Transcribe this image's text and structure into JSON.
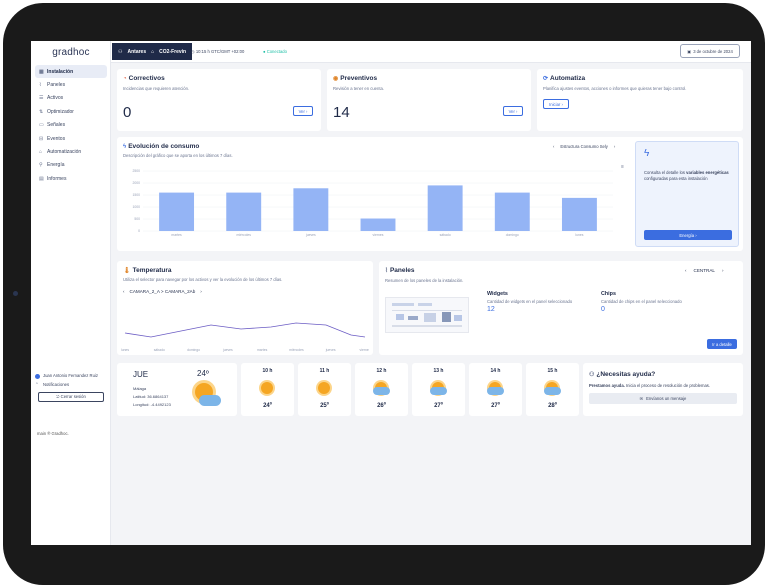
{
  "app": {
    "logo": "gradhoc"
  },
  "sidebar": {
    "items": [
      {
        "label": "Instalación",
        "icon": "grid-icon"
      },
      {
        "label": "Paneles",
        "icon": "pulse-icon"
      },
      {
        "label": "Activos",
        "icon": "list-icon"
      },
      {
        "label": "Optimizador",
        "icon": "sliders-icon"
      },
      {
        "label": "Señales",
        "icon": "folder-icon"
      },
      {
        "label": "Eventos",
        "icon": "event-icon"
      },
      {
        "label": "Automatización",
        "icon": "robot-icon"
      },
      {
        "label": "Energía",
        "icon": "pin-icon"
      },
      {
        "label": "Informes",
        "icon": "document-icon"
      }
    ],
    "user_name": "Juan Antonio Fernandez Ruiz",
    "notifications_label": "Notificaciones",
    "logout_label": "Cerrar sesión",
    "footer": "main ® Gradhoc."
  },
  "topbar": {
    "site": "Antares",
    "installation": "CO2-Frevin",
    "timezone": "10:15 h GTC/GMT +02:00",
    "status": "Conectado",
    "date": "3 de octubre de 2024"
  },
  "cards": {
    "correctivos": {
      "title": "Correctivos",
      "subtitle": "Incidencias que requieren atención.",
      "value": "0",
      "button": "Ver"
    },
    "preventivos": {
      "title": "Preventivos",
      "subtitle": "Revisión a tener en cuenta.",
      "value": "14",
      "button": "Ver"
    },
    "automatiza": {
      "title": "Automatiza",
      "subtitle": "Planifica ajustes eventos, acciones o informes que quieras tener bajo control.",
      "button": "Iniciar"
    }
  },
  "consumo": {
    "title": "Evolución de consumo",
    "subtitle": "Descripción del gráfico que se aporta en los últimos 7 días.",
    "structure": "Estructura Consumo Sely",
    "side_text_pre": "Consulta el detalle los",
    "side_text_bold": "variables energéticas",
    "side_text_post": "configuradas para esta instalación",
    "side_button": "Energía"
  },
  "chart_data": {
    "type": "bar",
    "categories": [
      "martes",
      "miércoles",
      "jueves",
      "viernes",
      "sábado",
      "domingo",
      "lunes"
    ],
    "values": [
      1600,
      1600,
      1780,
      520,
      1900,
      1600,
      1380
    ],
    "ylim": [
      0,
      2500
    ],
    "yticks": [
      "0",
      "500",
      "1000",
      "1500",
      "2000",
      "2500"
    ],
    "grid": true,
    "color": "#94b4f5"
  },
  "temperatura": {
    "title": "Temperatura",
    "subtitle": "Utiliza el selector para navegar por los activos y ver la evolución de los últimos 7 días.",
    "selector": "CAMARA_2_A > CAMARA_2Ab",
    "x_labels": [
      "lunes",
      "sábado",
      "domingo",
      "jueves",
      "martes",
      "miércoles",
      "jueves",
      "viernes"
    ]
  },
  "paneles": {
    "title": "Paneles",
    "subtitle": "Resumen de los paneles de la instalación.",
    "selector": "CENTRAL",
    "widgets_label": "Widgets",
    "widgets_sub": "Cantidad de widgets en el panel seleccionado",
    "widgets_value": "12",
    "chips_label": "Chips",
    "chips_sub": "Cantidad de chips en el panel seleccionado",
    "chips_value": "0",
    "button": "Ir a detalle"
  },
  "weather": {
    "day": "JUE",
    "temp": "24º",
    "city": "Málaga",
    "lat": "Latitud: 36.6864137",
    "lon": "Longitud: -4.4492123",
    "hours": [
      {
        "h": "10 h",
        "t": "24º",
        "icon": "sun-icon"
      },
      {
        "h": "11 h",
        "t": "25º",
        "icon": "sun-icon"
      },
      {
        "h": "12 h",
        "t": "26º",
        "icon": "partly-cloudy-icon"
      },
      {
        "h": "13 h",
        "t": "27º",
        "icon": "partly-cloudy-icon"
      },
      {
        "h": "14 h",
        "t": "27º",
        "icon": "partly-cloudy-icon"
      },
      {
        "h": "15 h",
        "t": "28º",
        "icon": "partly-cloudy-icon"
      }
    ]
  },
  "help": {
    "title": "¿Necesitas ayuda?",
    "text_bold": "Prestamos ayuda.",
    "text": "Inicia el proceso de resolución de problemas.",
    "button": "Envíanos un mensaje"
  }
}
